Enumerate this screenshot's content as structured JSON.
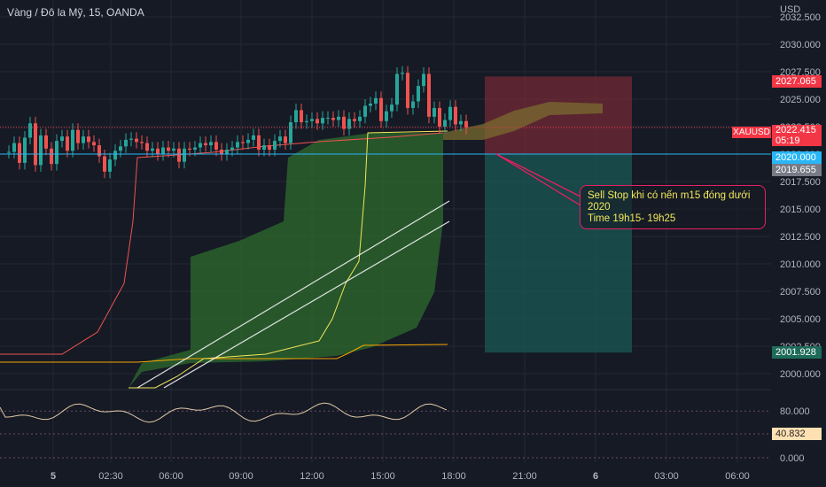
{
  "header": {
    "symbol_title": "Vàng / Đô la Mỹ, 15, OANDA",
    "currency": "USD"
  },
  "price_axis": {
    "ticks": [
      "2032.500",
      "2030.000",
      "2027.500",
      "2025.000",
      "2022.500",
      "2020.000",
      "2017.500",
      "2015.000",
      "2012.500",
      "2010.000",
      "2007.500",
      "2005.000",
      "2002.500",
      "2000.000"
    ]
  },
  "price_tags": {
    "stop_loss": "2027.065",
    "symbol": "XAUUSD",
    "last_price": "2022.415",
    "countdown": "05:19",
    "entry": "2020.000",
    "level": "2019.655",
    "take_profit": "2001.928"
  },
  "annotation": {
    "line1": "Sell Stop khi có nến m15 đóng dưới 2020",
    "line2": "Time 19h15- 19h25"
  },
  "oscillator": {
    "ticks": [
      "80.000",
      "0.000"
    ],
    "value": "40.832"
  },
  "time_axis": {
    "ticks": [
      "5",
      "02:30",
      "06:00",
      "09:00",
      "12:00",
      "15:00",
      "18:00",
      "21:00",
      "6",
      "03:00",
      "06:00"
    ]
  },
  "colors": {
    "background": "#161a25",
    "up": "#26a69a",
    "down": "#ef5350",
    "cloud": "#2e6b2e",
    "conversion_line": "#f3e85a",
    "base_line": "#f7a600",
    "lagging_line": "#ef5350",
    "ma_lines": "#ffffff",
    "entry_line": "#29b6f6",
    "stop_zone": "#8a2c3a",
    "target_zone": "#1a5c55",
    "annotation": "#e91e63"
  },
  "chart_data": {
    "type": "candlestick",
    "symbol": "XAUUSD",
    "timeframe": "15",
    "currency": "USD",
    "ylim": [
      1999.5,
      2033.0
    ],
    "last_price": 2022.415,
    "position": {
      "side": "sell",
      "entry": 2020.0,
      "stop_loss": 2027.065,
      "take_profit": 2001.928
    },
    "series": [
      {
        "name": "close",
        "values": [
          2020.2,
          2021.0,
          2019.2,
          2021.5,
          2022.8,
          2019.0,
          2021.7,
          2020.5,
          2019.1,
          2021.2,
          2021.6,
          2020.3,
          2022.2,
          2021.0,
          2021.6,
          2021.1,
          2020.8,
          2019.8,
          2018.4,
          2019.5,
          2020.3,
          2020.7,
          2021.3,
          2021.4,
          2021.1,
          2021.0,
          2020.3,
          2020.5,
          2020.0,
          2020.6,
          2020.3,
          2020.5,
          2019.3,
          2020.5,
          2020.4,
          2020.6,
          2021.0,
          2020.8,
          2021.1,
          2020.4,
          2020.0,
          2020.4,
          2020.6,
          2021.1,
          2021.0,
          2021.3,
          2021.7,
          2020.4,
          2020.8,
          2020.4,
          2021.2,
          2021.6,
          2021.0,
          2022.9,
          2024.0,
          2022.9,
          2023.0,
          2023.2,
          2022.8,
          2023.3,
          2023.3,
          2023.1,
          2023.4,
          2022.3,
          2023.2,
          2023.0,
          2023.4,
          2024.4,
          2024.6,
          2025.1,
          2023.0,
          2023.9,
          2024.5,
          2027.3,
          2027.4,
          2024.2,
          2024.8,
          2026.2,
          2027.3,
          2023.4,
          2024.2,
          2022.5,
          2023.1,
          2024.3,
          2022.7,
          2023.0,
          2022.4
        ]
      },
      {
        "name": "ichimoku_span_a",
        "values": [
          2020.0,
          2020.0,
          2020.0,
          2020.0,
          2020.0,
          2020.0,
          2020.0,
          2020.0,
          2020.0,
          2020.0,
          2020.0,
          2020.0,
          2020.0,
          2020.0,
          2020.0,
          2020.0,
          2020.0,
          2020.0,
          2020.0,
          2020.0,
          2020.0,
          2020.0,
          2020.0,
          2020.0,
          2020.0,
          2020.0,
          2020.0,
          2020.0,
          2020.0,
          2020.0,
          2020.0,
          2020.0,
          2020.0,
          2020.0,
          2020.0,
          2020.0,
          2020.0,
          2020.0,
          2020.0,
          2020.0,
          2020.0,
          2020.0,
          2020.0,
          2020.0,
          2020.0,
          2020.0,
          2020.0,
          2020.0,
          2020.0,
          2020.0,
          2020.0,
          2020.0,
          2020.0,
          2020.0,
          2020.0,
          2020.0,
          2020.0,
          2020.0,
          2020.0,
          2020.0,
          2020.0,
          2020.0,
          2020.0,
          2020.0,
          2020.0,
          2020.0,
          2020.0,
          2020.0,
          2020.0,
          2020.0,
          2020.0,
          2020.0,
          2020.0,
          2020.0,
          2020.0,
          2020.0,
          2020.0,
          2020.0,
          2020.0,
          2020.0,
          2020.0,
          2020.0,
          2020.0,
          2020.0,
          2020.0,
          2020.0,
          2020.0
        ]
      }
    ],
    "trend_lines": [
      {
        "name": "ma_fast",
        "from": [
          2000.0,
          2021.5
        ],
        "to": [
          2005.5,
          2015.9
        ]
      },
      {
        "name": "ma_slow",
        "from": [
          2000.0,
          2018.0
        ],
        "to": [
          2004.0,
          2014.0
        ]
      }
    ],
    "oscillator": {
      "value": 40.832,
      "levels": [
        80,
        0
      ]
    }
  }
}
